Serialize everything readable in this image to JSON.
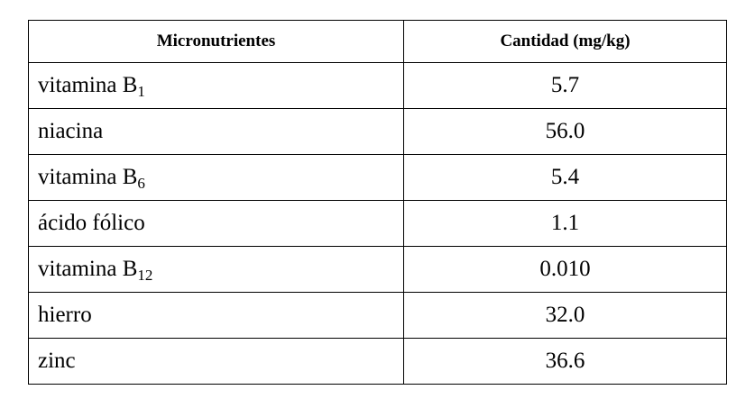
{
  "table": {
    "header": [
      "Micronutrientes",
      "Cantidad (mg/kg)"
    ],
    "rows": [
      [
        {
          "text": "vitamina B",
          "sub": "1"
        },
        "5.7"
      ],
      [
        {
          "text": "niacina"
        },
        "56.0"
      ],
      [
        {
          "text": "vitamina B",
          "sub": "6"
        },
        "5.4"
      ],
      [
        {
          "text": "ácido fólico"
        },
        "1.1"
      ],
      [
        {
          "text": "vitamina B",
          "sub": "12"
        },
        "0.010"
      ],
      [
        {
          "text": "hierro"
        },
        "32.0"
      ],
      [
        {
          "text": "zinc"
        },
        "36.6"
      ]
    ]
  }
}
